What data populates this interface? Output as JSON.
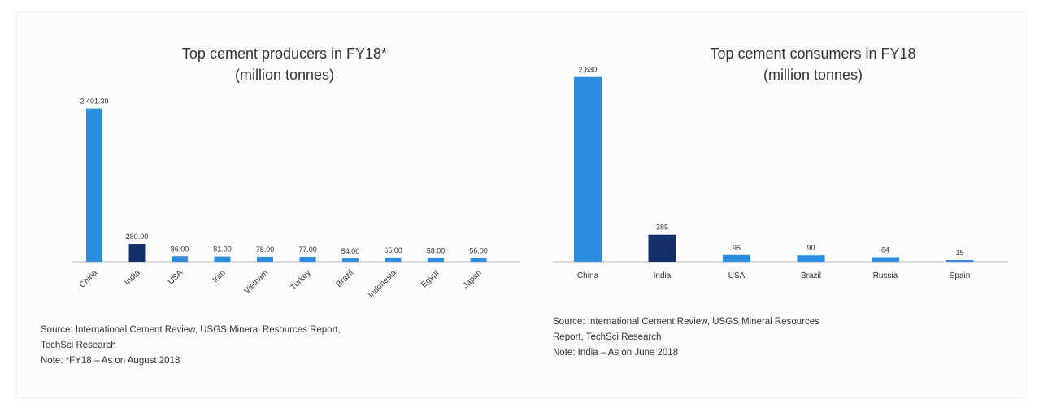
{
  "chart_data": [
    {
      "type": "bar",
      "title": "Top cement producers in FY18*",
      "subtitle": "(million tonnes)",
      "categories": [
        "China",
        "India",
        "USA",
        "Iran",
        "Vietnam",
        "Turkey",
        "Brazil",
        "Indonesia",
        "Egypt",
        "Japan"
      ],
      "values": [
        2401.3,
        280.0,
        86.0,
        81.0,
        78.0,
        77.0,
        54.0,
        65.0,
        58.0,
        56.0
      ],
      "value_labels": [
        "2,401.30",
        "280.00",
        "86.00",
        "81.00",
        "78.00",
        "77.00",
        "54.00",
        "65.00",
        "58.00",
        "56.00"
      ],
      "highlight_index": 1,
      "ylim": [
        0,
        2600
      ],
      "grid": false,
      "legend": "none"
    },
    {
      "type": "bar",
      "title": "Top cement consumers in FY18",
      "subtitle": "(million tonnes)",
      "categories": [
        "China",
        "India",
        "USA",
        "Brazil",
        "Russia",
        "Spain"
      ],
      "values": [
        2630,
        385,
        95,
        90,
        64,
        15
      ],
      "value_labels": [
        "2,630",
        "385",
        "95",
        "90",
        "64",
        "15"
      ],
      "highlight_index": 1,
      "ylim": [
        0,
        2800
      ],
      "grid": false,
      "legend": "none"
    }
  ],
  "colors": {
    "primary": "#2b8ce0",
    "highlight": "#13306b",
    "axis": "#bdbdbd",
    "text": "#333333"
  },
  "notes_left": {
    "source": "Source: International Cement Review, USGS Mineral Resources Report,",
    "source2": "TechSci Research",
    "note": "Note: *FY18 – As on August 2018"
  },
  "notes_right": {
    "source": "Source: International Cement Review, USGS Mineral Resources",
    "source2": "Report, TechSci Research",
    "note": "Note: India – As on June 2018"
  }
}
